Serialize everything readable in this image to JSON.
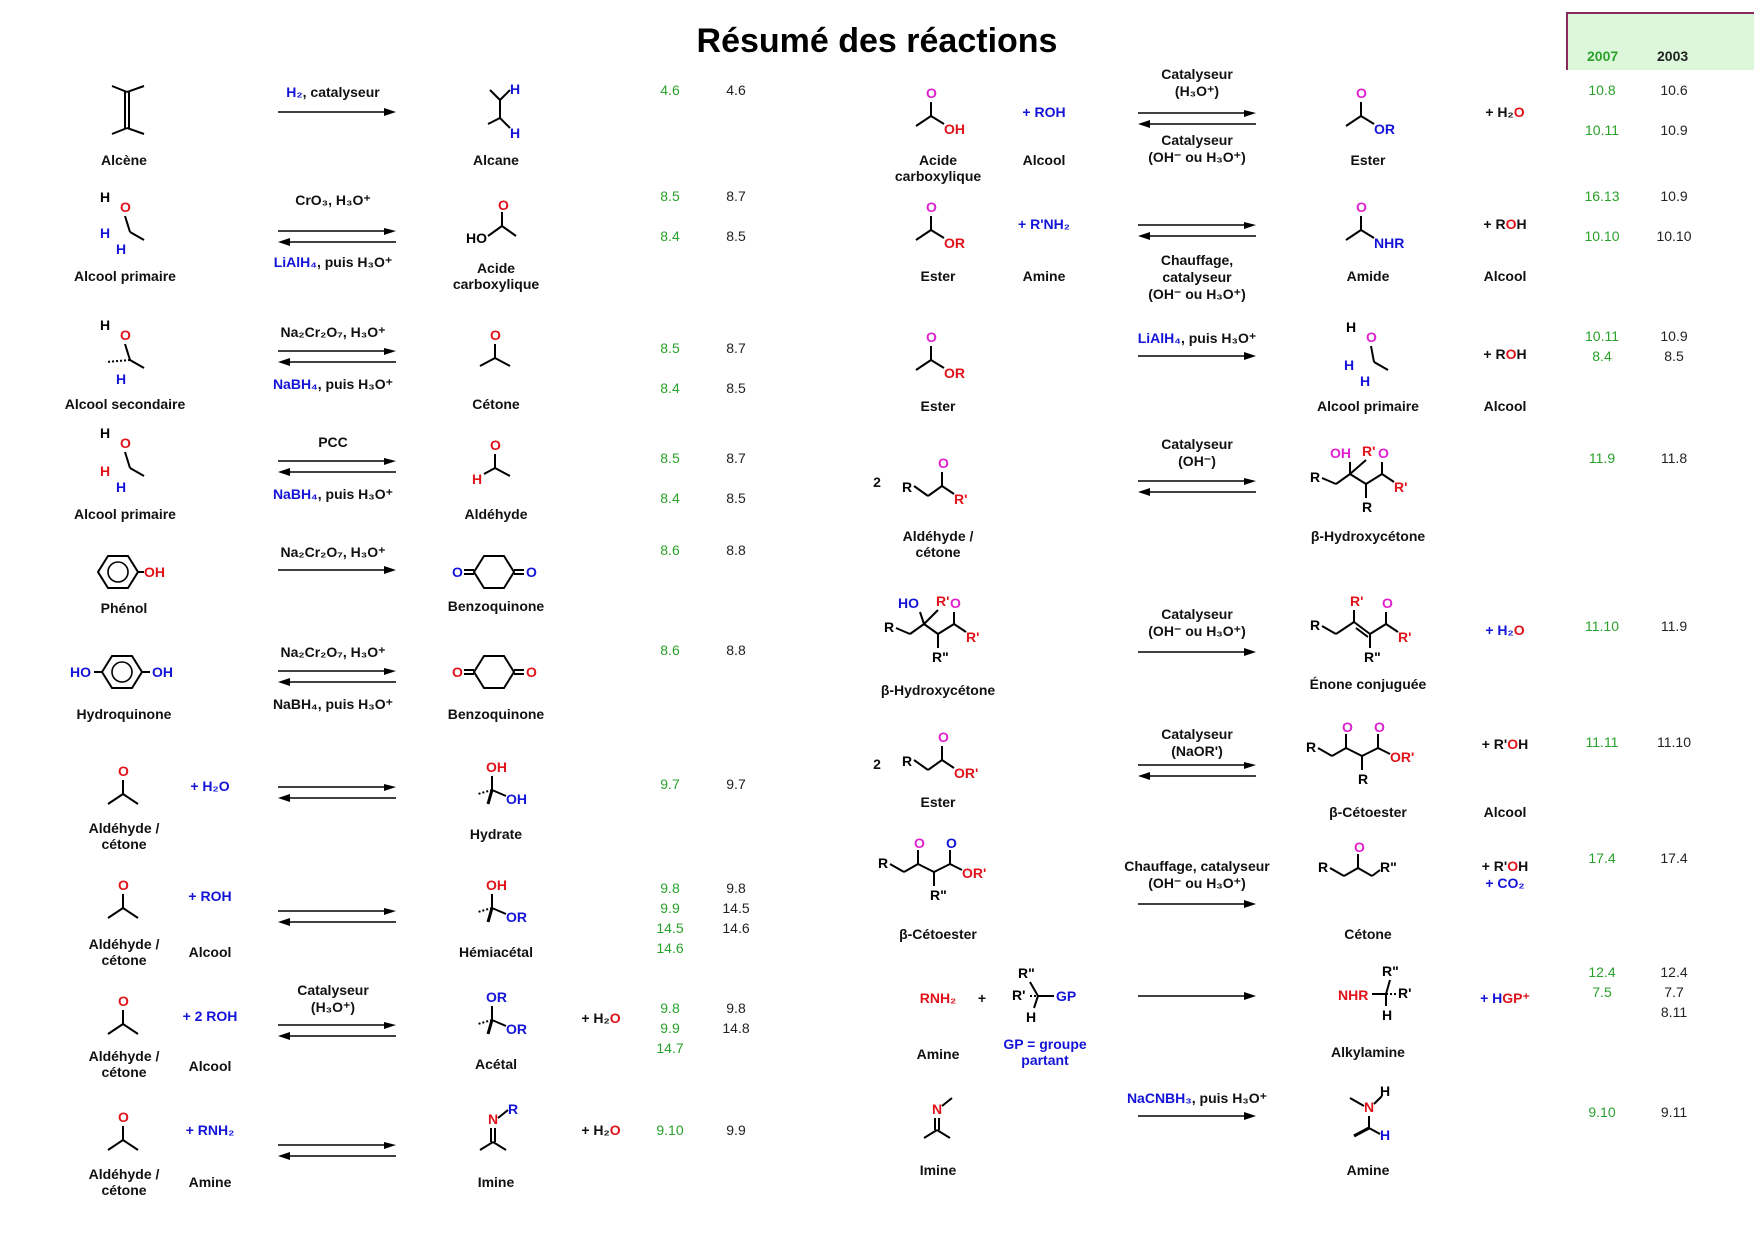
{
  "title": "Résumé des réactions",
  "header": {
    "col_2007": "2007",
    "col_2003": "2003"
  },
  "left": [
    {
      "reactant": "Alcène",
      "reagent": "",
      "conditions_top": "H₂, catalyseur",
      "conditions_bottom": "",
      "product": "Alcane",
      "byproduct": "",
      "ref2007": "4.6",
      "ref2003": "4.6"
    },
    {
      "reactant": "Alcool primaire",
      "reagent": "",
      "conditions_top": "CrO₃, H₃O⁺",
      "conditions_bottom": "LiAlH₄, puis H₃O⁺",
      "product": "Acide\ncarboxylique",
      "byproduct": "",
      "ref2007": "8.5\n\n8.4",
      "ref2003": "8.7\n\n8.5"
    },
    {
      "reactant": "Alcool secondaire",
      "reagent": "",
      "conditions_top": "Na₂Cr₂O₇, H₃O⁺",
      "conditions_bottom": "NaBH₄, puis  H₃O⁺",
      "product": "Cétone",
      "byproduct": "",
      "ref2007": "8.5\n\n8.4",
      "ref2003": "8.7\n\n8.5"
    },
    {
      "reactant": "Alcool primaire",
      "reagent": "",
      "conditions_top": "PCC",
      "conditions_bottom": "NaBH₄, puis  H₃O⁺",
      "product": "Aldéhyde",
      "byproduct": "",
      "ref2007": "8.5\n\n8.4",
      "ref2003": "8.7\n\n8.5"
    },
    {
      "reactant": "Phénol",
      "reagent": "",
      "conditions_top": "Na₂Cr₂O₇, H₃O⁺",
      "conditions_bottom": "",
      "product": "Benzoquinone",
      "byproduct": "",
      "ref2007": "8.6",
      "ref2003": "8.8"
    },
    {
      "reactant": "Hydroquinone",
      "reagent": "",
      "conditions_top": "Na₂Cr₂O₇, H₃O⁺",
      "conditions_bottom": "NaBH₄, puis  H₃O⁺",
      "product": "Benzoquinone",
      "byproduct": "",
      "ref2007": "8.6",
      "ref2003": "8.8"
    },
    {
      "reactant": "Aldéhyde /\ncétone",
      "reagent": "+ H₂O",
      "conditions_top": "",
      "conditions_bottom": "",
      "product": "Hydrate",
      "byproduct": "",
      "ref2007": "9.7",
      "ref2003": "9.7"
    },
    {
      "reactant": "Aldéhyde /\ncétone",
      "reagent": "+ ROH",
      "reagent_label": "Alcool",
      "conditions_top": "",
      "conditions_bottom": "",
      "product": "Hémiacétal",
      "byproduct": "",
      "ref2007": "9.8\n9.9\n14.5\n14.6",
      "ref2003": "9.8\n14.5\n14.6"
    },
    {
      "reactant": "Aldéhyde /\ncétone",
      "reagent": "+ 2 ROH",
      "reagent_label": "Alcool",
      "conditions_top": "Catalyseur\n(H₃O⁺)",
      "conditions_bottom": "",
      "product": "Acétal",
      "byproduct": "+ H₂O",
      "ref2007": "9.8\n9.9\n14.7",
      "ref2003": "9.8\n14.8"
    },
    {
      "reactant": "Aldéhyde /\ncétone",
      "reagent": "+ RNH₂",
      "reagent_label": "Amine",
      "conditions_top": "",
      "conditions_bottom": "",
      "product": "Imine",
      "byproduct": "+ H₂O",
      "ref2007": "9.10",
      "ref2003": "9.9"
    }
  ],
  "right": [
    {
      "reactant": "Acide\ncarboxylique",
      "reagent": "+ ROH",
      "reagent_label": "Alcool",
      "conditions_top": "Catalyseur\n(H₃O⁺)",
      "conditions_bottom": "Catalyseur\n(OH⁻ ou H₃O⁺)",
      "product": "Ester",
      "byproduct": "+ H₂O",
      "byproduct_label": "",
      "ref2007": "10.8\n\n10.11",
      "ref2003": "10.6\n\n10.9"
    },
    {
      "reactant": "Ester",
      "reagent": "+ R'NH₂",
      "reagent_label": "Amine",
      "conditions_top": "",
      "conditions_bottom": "Chauffage,\ncatalyseur\n(OH⁻ ou H₃O⁺)",
      "product": "Amide",
      "byproduct": "+ ROH",
      "byproduct_label": "Alcool",
      "ref2007": "16.13\n\n10.10",
      "ref2003": "10.9\n\n10.10"
    },
    {
      "reactant": "Ester",
      "reagent": "",
      "reagent_label": "",
      "conditions_top": "LiAlH₄, puis H₃O⁺",
      "conditions_bottom": "",
      "product": "Alcool primaire",
      "byproduct": "+ ROH",
      "byproduct_label": "Alcool",
      "ref2007": "10.11\n8.4",
      "ref2003": "10.9\n8.5"
    },
    {
      "reactant": "Aldéhyde /\ncétone",
      "reagent": "",
      "reagent_label": "",
      "coef": "2",
      "conditions_top": "Catalyseur\n(OH⁻)",
      "conditions_bottom": "",
      "product": "β-Hydroxycétone",
      "byproduct": "",
      "byproduct_label": "",
      "ref2007": "11.9",
      "ref2003": "11.8"
    },
    {
      "reactant": "β-Hydroxycétone",
      "reagent": "",
      "reagent_label": "",
      "conditions_top": "Catalyseur\n(OH⁻ ou H₃O⁺)",
      "conditions_bottom": "",
      "product": "Énone conjuguée",
      "byproduct": "+ H₂O",
      "byproduct_label": "",
      "ref2007": "11.10",
      "ref2003": "11.9"
    },
    {
      "reactant": "Ester",
      "reagent": "",
      "reagent_label": "",
      "coef": "2",
      "conditions_top": "Catalyseur\n(NaOR')",
      "conditions_bottom": "",
      "product": "β-Cétoester",
      "byproduct": "+ R'OH",
      "byproduct_label": "Alcool",
      "ref2007": "11.11",
      "ref2003": "11.10"
    },
    {
      "reactant": "β-Cétoester",
      "reagent": "",
      "reagent_label": "",
      "conditions_top": "Chauffage, catalyseur\n(OH⁻ ou H₃O⁺)",
      "conditions_bottom": "",
      "product": "Cétone",
      "byproduct": "+ R'OH\n+ CO₂",
      "byproduct_label": "",
      "ref2007": "17.4",
      "ref2003": "17.4"
    },
    {
      "reactant": "Amine",
      "reagent": "+",
      "reagent_label": "GP = groupe\npartant",
      "conditions_top": "",
      "conditions_bottom": "",
      "product": "Alkylamine",
      "byproduct": "+ HGP⁺",
      "byproduct_label": "",
      "ref2007": "12.4\n7.5",
      "ref2003": "12.4\n7.7\n8.11"
    },
    {
      "reactant": "Imine",
      "reagent": "",
      "reagent_label": "",
      "conditions_top": "NaCNBH₃, puis  H₃O⁺",
      "conditions_bottom": "",
      "product": "Amine",
      "byproduct": "",
      "byproduct_label": "",
      "ref2007": "9.10",
      "ref2003": "9.11"
    }
  ],
  "structure_text": {
    "H": "H",
    "O": "O",
    "OH": "OH",
    "HO": "HO",
    "OR": "OR",
    "R": "R",
    "Rp": "R'",
    "Rpp": "R\"",
    "N": "N",
    "NHR": "NHR",
    "GP": "GP",
    "RNH2": "RNH₂",
    "ORp": "OR'"
  },
  "colors": {
    "reaction_blue": "#1414d8",
    "oxygen_red": "#e0121a",
    "magenta": "#e020d0",
    "ref_green": "#2aa12a",
    "header_bg": "#dcf7da"
  }
}
